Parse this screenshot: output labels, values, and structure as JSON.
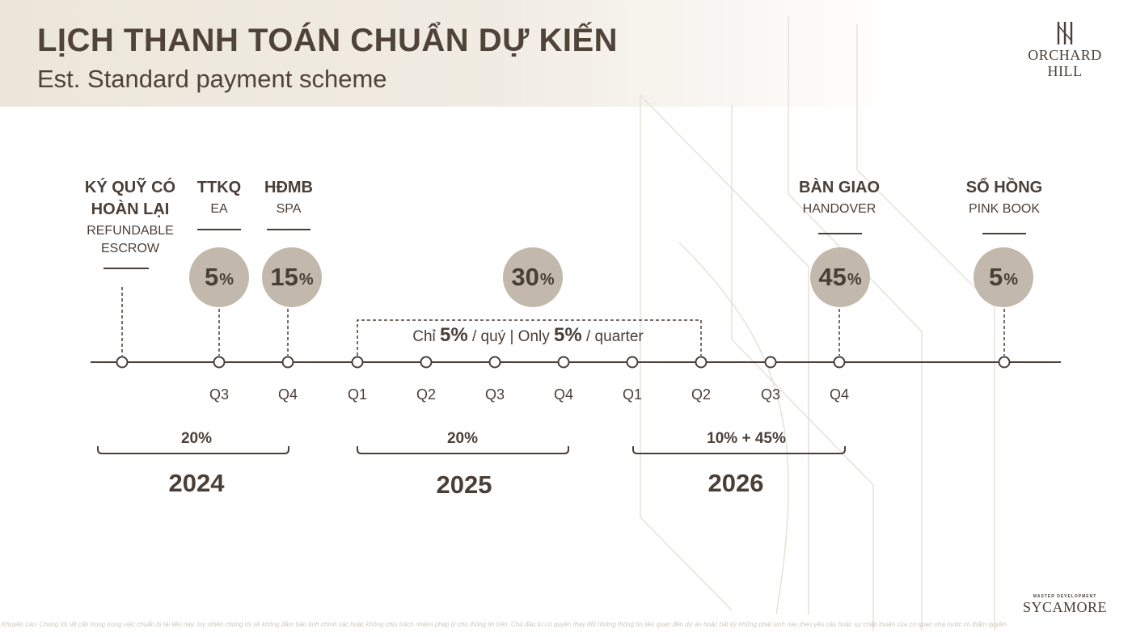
{
  "header": {
    "title": "LỊCH THANH TOÁN CHUẨN DỰ KIẾN",
    "subtitle": "Est. Standard payment scheme"
  },
  "brand": {
    "logo_icon": "orchard-hill-monogram",
    "line1": "ORCHARD",
    "line2": "HILL",
    "developer_caption": "MASTER DEVELOPMENT",
    "developer_name": "SYCAMORE"
  },
  "colors": {
    "text": "#4a3f37",
    "circle": "#c2b8ab",
    "line": "#4a3f37"
  },
  "milestones": [
    {
      "main": "KÝ QUỸ CÓ HOÀN LẠI",
      "sub": "REFUNDABLE ESCROW",
      "percent": ""
    },
    {
      "main": "TTKQ",
      "sub": "EA",
      "percent": "5"
    },
    {
      "main": "HĐMB",
      "sub": "SPA",
      "percent": "15"
    },
    {
      "main": "",
      "sub": "",
      "percent": "30"
    },
    {
      "main": "BÀN GIAO",
      "sub": "HANDOVER",
      "percent": "45"
    },
    {
      "main": "SỔ HỒNG",
      "sub": "PINK BOOK",
      "percent": "5"
    }
  ],
  "percent_sign": "%",
  "installment_note": {
    "prefix": "Chỉ ",
    "pct1": "5%",
    "mid": " / quý | Only ",
    "pct2": "5%",
    "suffix": " / quarter"
  },
  "quarters": [
    "Q3",
    "Q4",
    "Q1",
    "Q2",
    "Q3",
    "Q4",
    "Q1",
    "Q2",
    "Q3",
    "Q4"
  ],
  "years": [
    {
      "year": "2024",
      "percent": "20%"
    },
    {
      "year": "2025",
      "percent": "20%"
    },
    {
      "year": "2026",
      "percent": "10% + 45%"
    }
  ],
  "disclaimer": "Khuyến cáo: Chúng tôi rất cẩn trọng trong việc chuẩn bị tài liệu này, tuy nhiên chúng tôi sẽ không đảm bảo tính chính xác hoặc không chịu trách nhiệm pháp lý cho thông tin trên. Chủ đầu tư có quyền thay đổi những thông tin liên quan đến dự án hoặc bất kỳ những phát sinh nào theo yêu cầu hoặc sự chấp thuận của cơ quan nhà nước có thẩm quyền."
}
